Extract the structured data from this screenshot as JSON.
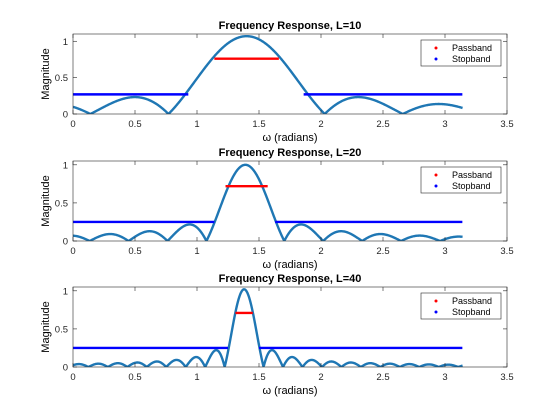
{
  "chart_data": [
    {
      "type": "line",
      "title": "Frequency Response, L=10",
      "L": 10,
      "xlabel": "ω (radians)",
      "ylabel": "Magnitude",
      "xlim": [
        0,
        3.5
      ],
      "ylim": [
        0,
        1.1
      ],
      "xticks": [
        0,
        0.5,
        1,
        1.5,
        2,
        2.5,
        3,
        3.5
      ],
      "yticks": [
        0,
        0.5,
        1
      ],
      "xtick_labels": [
        "0",
        "0.5",
        "1",
        "1.5",
        "2",
        "2.5",
        "3",
        "3.5"
      ],
      "ytick_labels": [
        "0",
        "0.5",
        "1"
      ],
      "legend": {
        "position": "top-right",
        "entries": [
          "Passband",
          "Stopband"
        ]
      },
      "series": [
        {
          "name": "Passband",
          "color": "#ff0000",
          "y": 0.76,
          "x_range": [
            1.14,
            1.66
          ]
        },
        {
          "name": "Stopband",
          "color": "#0000ff",
          "y": 0.27,
          "x_ranges": [
            [
              0,
              0.93
            ],
            [
              1.86,
              3.14
            ]
          ]
        }
      ],
      "response": {
        "color": "#1f77b4",
        "x_range": [
          0,
          3.1416
        ],
        "center": 1.4,
        "peak": 1.07,
        "zero_spacing": 0.63
      }
    },
    {
      "type": "line",
      "title": "Frequency Response, L=20",
      "L": 20,
      "xlabel": "ω (radians)",
      "ylabel": "Magnitude",
      "xlim": [
        0,
        3.5
      ],
      "ylim": [
        0,
        1.05
      ],
      "xticks": [
        0,
        0.5,
        1,
        1.5,
        2,
        2.5,
        3,
        3.5
      ],
      "yticks": [
        0,
        0.5,
        1
      ],
      "xtick_labels": [
        "0",
        "0.5",
        "1",
        "1.5",
        "2",
        "2.5",
        "3",
        "3.5"
      ],
      "ytick_labels": [
        "0",
        "0.5",
        "1"
      ],
      "legend": {
        "position": "top-right",
        "entries": [
          "Passband",
          "Stopband"
        ]
      },
      "series": [
        {
          "name": "Passband",
          "color": "#ff0000",
          "y": 0.72,
          "x_range": [
            1.23,
            1.57
          ]
        },
        {
          "name": "Stopband",
          "color": "#0000ff",
          "y": 0.25,
          "x_ranges": [
            [
              0,
              1.14
            ],
            [
              1.63,
              3.14
            ]
          ]
        }
      ],
      "response": {
        "color": "#1f77b4",
        "x_range": [
          0,
          3.1416
        ],
        "center": 1.39,
        "peak": 1.0,
        "zero_spacing": 0.314
      }
    },
    {
      "type": "line",
      "title": "Frequency Response, L=40",
      "L": 40,
      "xlabel": "ω (radians)",
      "ylabel": "Magnitude",
      "xlim": [
        0,
        3.5
      ],
      "ylim": [
        0,
        1.05
      ],
      "xticks": [
        0,
        0.5,
        1,
        1.5,
        2,
        2.5,
        3,
        3.5
      ],
      "yticks": [
        0,
        0.5,
        1
      ],
      "xtick_labels": [
        "0",
        "0.5",
        "1",
        "1.5",
        "2",
        "2.5",
        "3",
        "3.5"
      ],
      "ytick_labels": [
        "0",
        "0.5",
        "1"
      ],
      "legend": {
        "position": "top-right",
        "entries": [
          "Passband",
          "Stopband"
        ]
      },
      "series": [
        {
          "name": "Passband",
          "color": "#ff0000",
          "y": 0.71,
          "x_range": [
            1.31,
            1.45
          ]
        },
        {
          "name": "Stopband",
          "color": "#0000ff",
          "y": 0.25,
          "x_ranges": [
            [
              0,
              1.25
            ],
            [
              1.5,
              3.14
            ]
          ]
        }
      ],
      "response": {
        "color": "#1f77b4",
        "x_range": [
          0,
          3.1416
        ],
        "center": 1.38,
        "peak": 1.02,
        "zero_spacing": 0.157
      }
    }
  ]
}
